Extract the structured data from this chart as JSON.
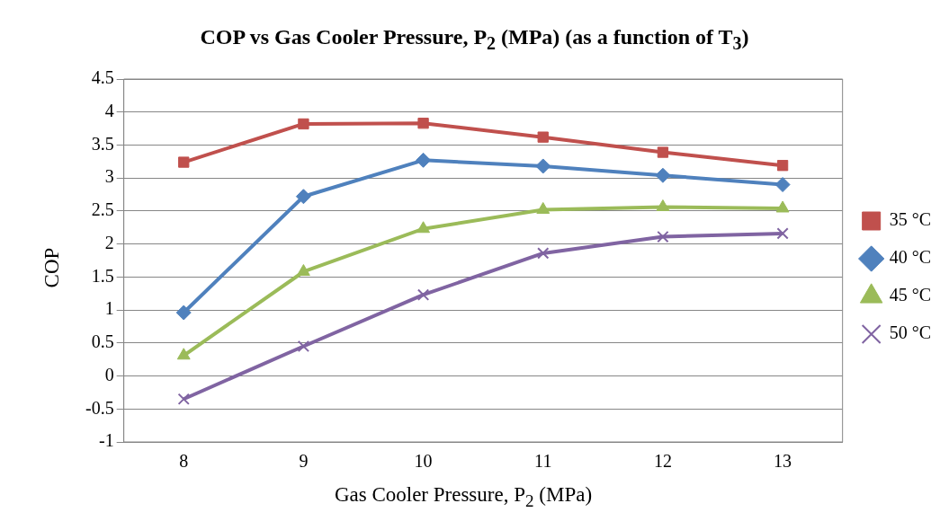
{
  "chart_data": {
    "type": "line",
    "title": "COP vs Gas Cooler Pressure, P$_{2}$ (MPa) (as a function of T$_{3}$)",
    "xlabel": "Gas Cooler Pressure, P$_{2}$ (MPa)",
    "ylabel": "COP",
    "categories": [
      "8",
      "9",
      "10",
      "11",
      "12",
      "13"
    ],
    "series": [
      {
        "name": "35 °C",
        "color": "#c0504d",
        "marker": "square",
        "values": [
          3.24,
          3.82,
          3.83,
          3.62,
          3.39,
          3.19
        ]
      },
      {
        "name": "40 °C",
        "color": "#4f81bd",
        "marker": "diamond",
        "values": [
          0.96,
          2.72,
          3.27,
          3.18,
          3.04,
          2.9
        ]
      },
      {
        "name": "45 °C",
        "color": "#9bbb59",
        "marker": "triangle",
        "values": [
          0.31,
          1.58,
          2.23,
          2.52,
          2.56,
          2.54
        ]
      },
      {
        "name": "50 °C",
        "color": "#8064a2",
        "marker": "cross",
        "values": [
          -0.35,
          0.45,
          1.23,
          1.86,
          2.11,
          2.16
        ]
      }
    ],
    "ylim": [
      -1,
      4.5
    ],
    "yticks": [
      -1,
      -0.5,
      0,
      0.5,
      1,
      1.5,
      2,
      2.5,
      3,
      3.5,
      4,
      4.5
    ],
    "grid": "y",
    "legend": "right",
    "line_style": "solid"
  }
}
